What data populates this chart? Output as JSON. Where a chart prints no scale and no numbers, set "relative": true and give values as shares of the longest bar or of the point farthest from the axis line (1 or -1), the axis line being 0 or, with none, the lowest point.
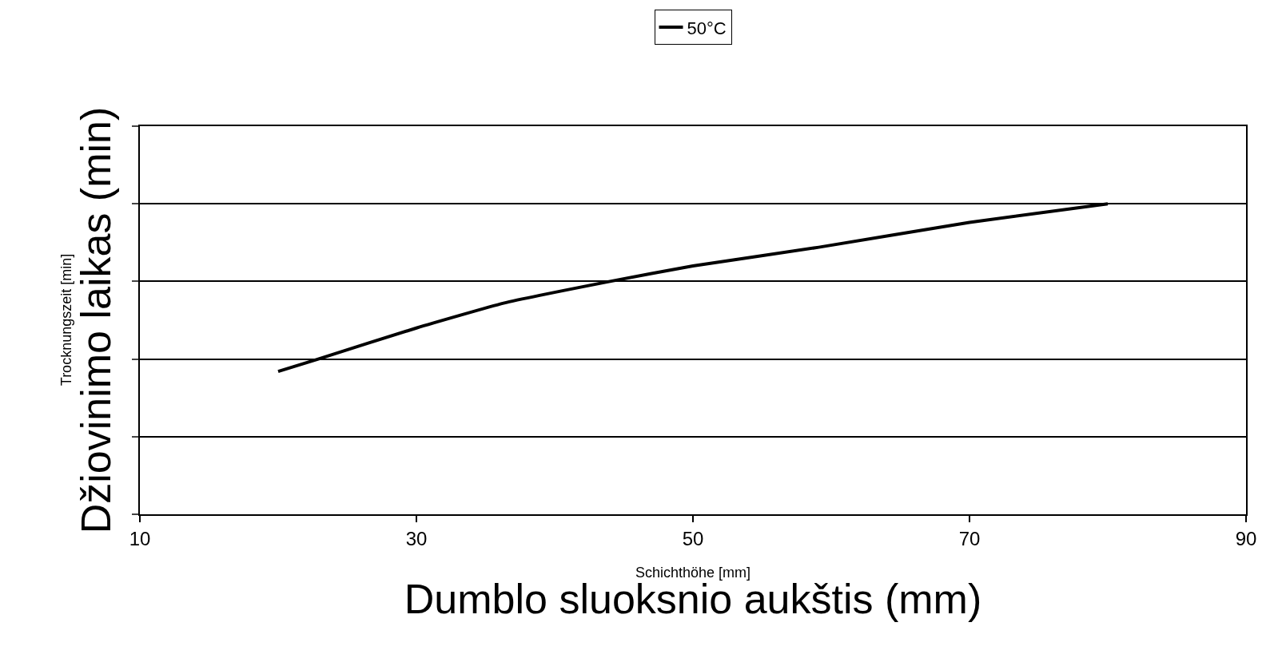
{
  "chart_data": {
    "type": "line",
    "xlabel": "Dumblo sluoksnio aukštis (mm)",
    "ylabel": "Džiovinimo laikas (min)",
    "annotations": [
      "Schichthöhe [mm]",
      "Trocknungszeit [min]"
    ],
    "relative": true,
    "xlim": [
      10,
      90
    ],
    "xticks": [
      10,
      30,
      50,
      70,
      90
    ],
    "grid": "y",
    "legend": "top",
    "marker": "none",
    "line_style": "solid",
    "series": [
      {
        "name": "50°C",
        "color": "#000000",
        "x": [
          20,
          22.9,
          30,
          36.3,
          44,
          50,
          59.1,
          70,
          80
        ],
        "values": [
          0.46,
          0.5,
          0.6,
          0.68,
          0.75,
          0.8,
          0.86,
          0.94,
          1.0
        ]
      }
    ]
  }
}
